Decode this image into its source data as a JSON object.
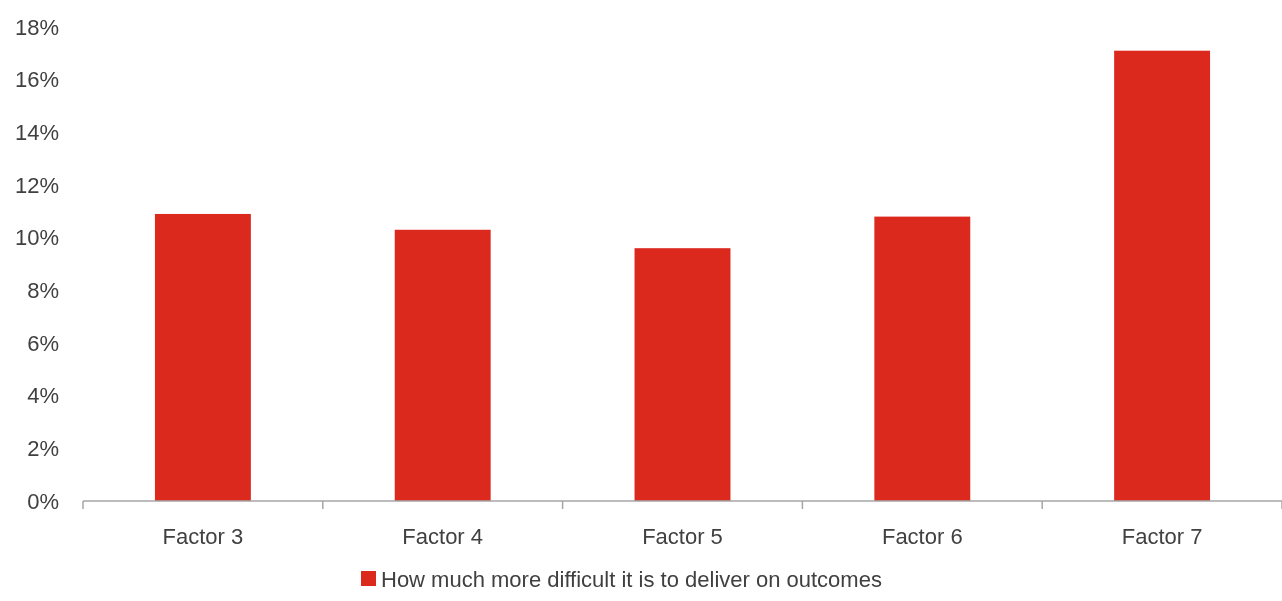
{
  "chart_data": {
    "type": "bar",
    "categories": [
      "Factor 3",
      "Factor 4",
      "Factor 5",
      "Factor 6",
      "Factor 7"
    ],
    "series": [
      {
        "name": "How much more difficult it is to deliver on outcomes",
        "color": "#dc291e",
        "values": [
          10.9,
          10.3,
          9.6,
          10.8,
          17.1
        ]
      }
    ],
    "ylim": [
      0,
      18
    ],
    "yticks": [
      {
        "value": 0,
        "label": "0%"
      },
      {
        "value": 2,
        "label": "2%"
      },
      {
        "value": 4,
        "label": "4%"
      },
      {
        "value": 6,
        "label": "6%"
      },
      {
        "value": 8,
        "label": "8%"
      },
      {
        "value": 10,
        "label": "10%"
      },
      {
        "value": 12,
        "label": "12%"
      },
      {
        "value": 14,
        "label": "14%"
      },
      {
        "value": 16,
        "label": "16%"
      },
      {
        "value": 18,
        "label": "18%"
      }
    ],
    "grid": false,
    "legend": "bottom"
  }
}
